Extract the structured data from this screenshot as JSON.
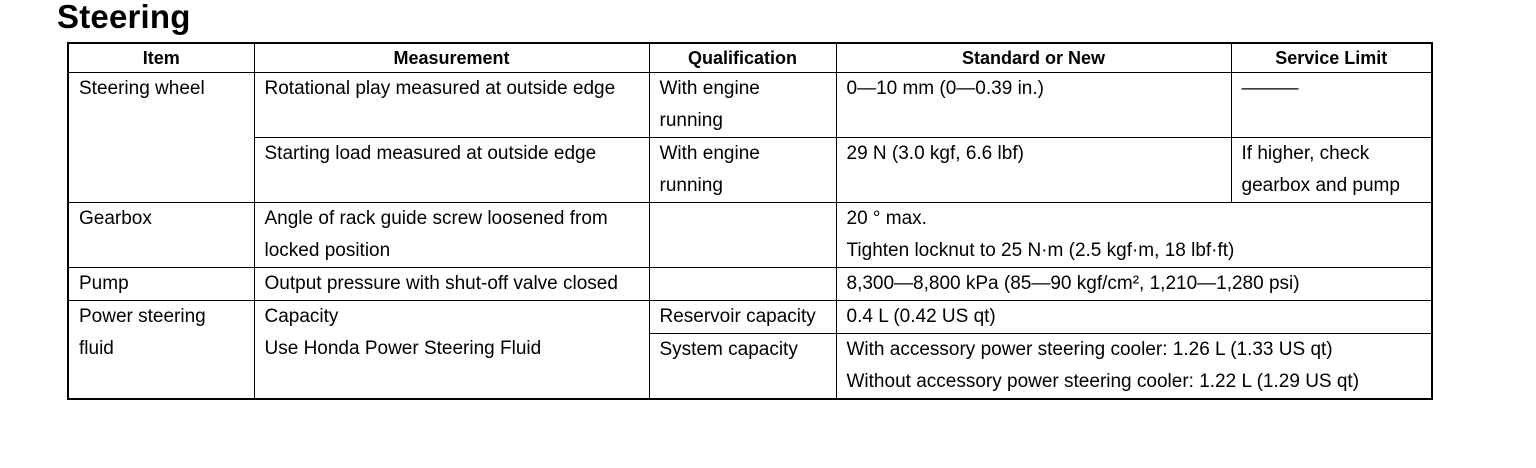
{
  "title": "Steering",
  "table": {
    "header": [
      "Item",
      "Measurement",
      "Qualification",
      "Standard or New",
      "Service Limit"
    ],
    "rows": [
      [
        "Steering wheel",
        "Rotational play measured at outside edge",
        "With engine running",
        "0—10 mm (0—0.39 in.)",
        "———"
      ],
      [
        "Starting load measured at outside edge",
        "With engine running",
        "29 N (3.0 kgf, 6.6 lbf)",
        "If higher, check gearbox and pump"
      ],
      [
        "Gearbox",
        "Angle of rack guide screw loosened from locked position",
        [
          "20 ° max.",
          "Tighten locknut to 25 N·m (2.5 kgf·m, 18 lbf·ft)"
        ]
      ],
      [
        "Pump",
        "Output pressure with shut-off valve closed",
        "8,300—8,800 kPa (85—90 kgf/cm², 1,210—1,280 psi)"
      ],
      [
        "Power steering fluid",
        [
          "Capacity",
          "Use Honda Power Steering Fluid"
        ],
        "Reservoir capacity",
        "0.4 L (0.42 US qt)"
      ],
      [
        "System capacity",
        [
          "With accessory power steering cooler: 1.26 L (1.33 US qt)",
          "Without accessory power steering cooler: 1.22 L (1.29 US qt)"
        ]
      ]
    ]
  }
}
